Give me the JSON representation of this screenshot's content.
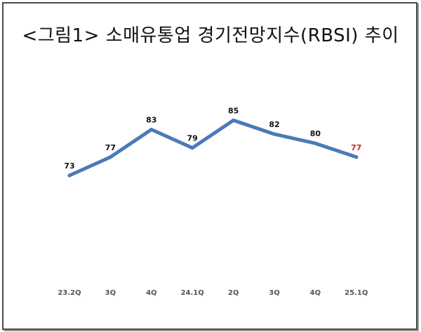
{
  "title": "<그림1> 소매유통업 경기전망지수(RBSI) 추이",
  "colors": {
    "line": "#4a7ab8",
    "label": "#111111",
    "highlight_label": "#c0282d",
    "tick": "#555555"
  },
  "chart_data": {
    "type": "line",
    "title": "<그림1> 소매유통업 경기전망지수(RBSI) 추이",
    "xlabel": "",
    "ylabel": "",
    "categories": [
      "23.2Q",
      "3Q",
      "4Q",
      "24.1Q",
      "2Q",
      "3Q",
      "4Q",
      "25.1Q"
    ],
    "series": [
      {
        "values": [
          73,
          77,
          83,
          79,
          85,
          82,
          80,
          77
        ]
      }
    ],
    "data_labels": [
      "73",
      "77",
      "83",
      "79",
      "85",
      "82",
      "80",
      "77"
    ],
    "highlighted_index": 7,
    "grid": false,
    "legend": "none"
  }
}
